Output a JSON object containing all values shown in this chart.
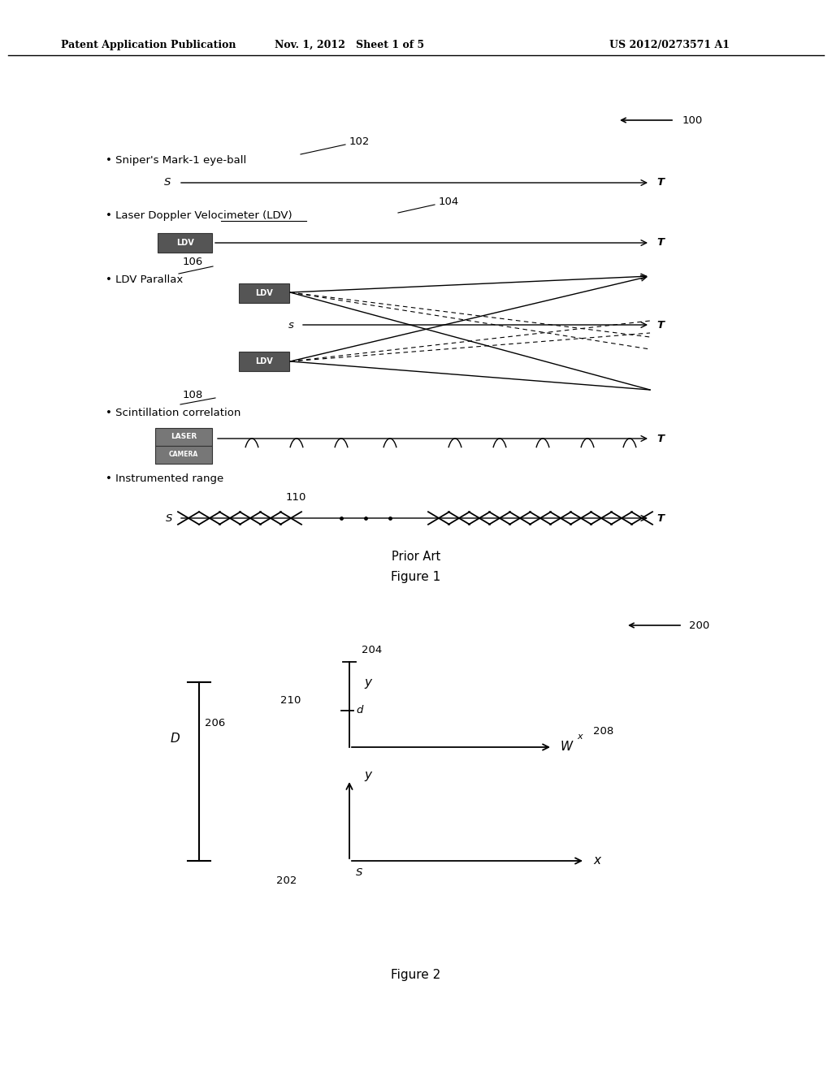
{
  "bg_color": "#ffffff",
  "header_left": "Patent Application Publication",
  "header_mid": "Nov. 1, 2012   Sheet 1 of 5",
  "header_right": "US 2012/0273571 A1"
}
